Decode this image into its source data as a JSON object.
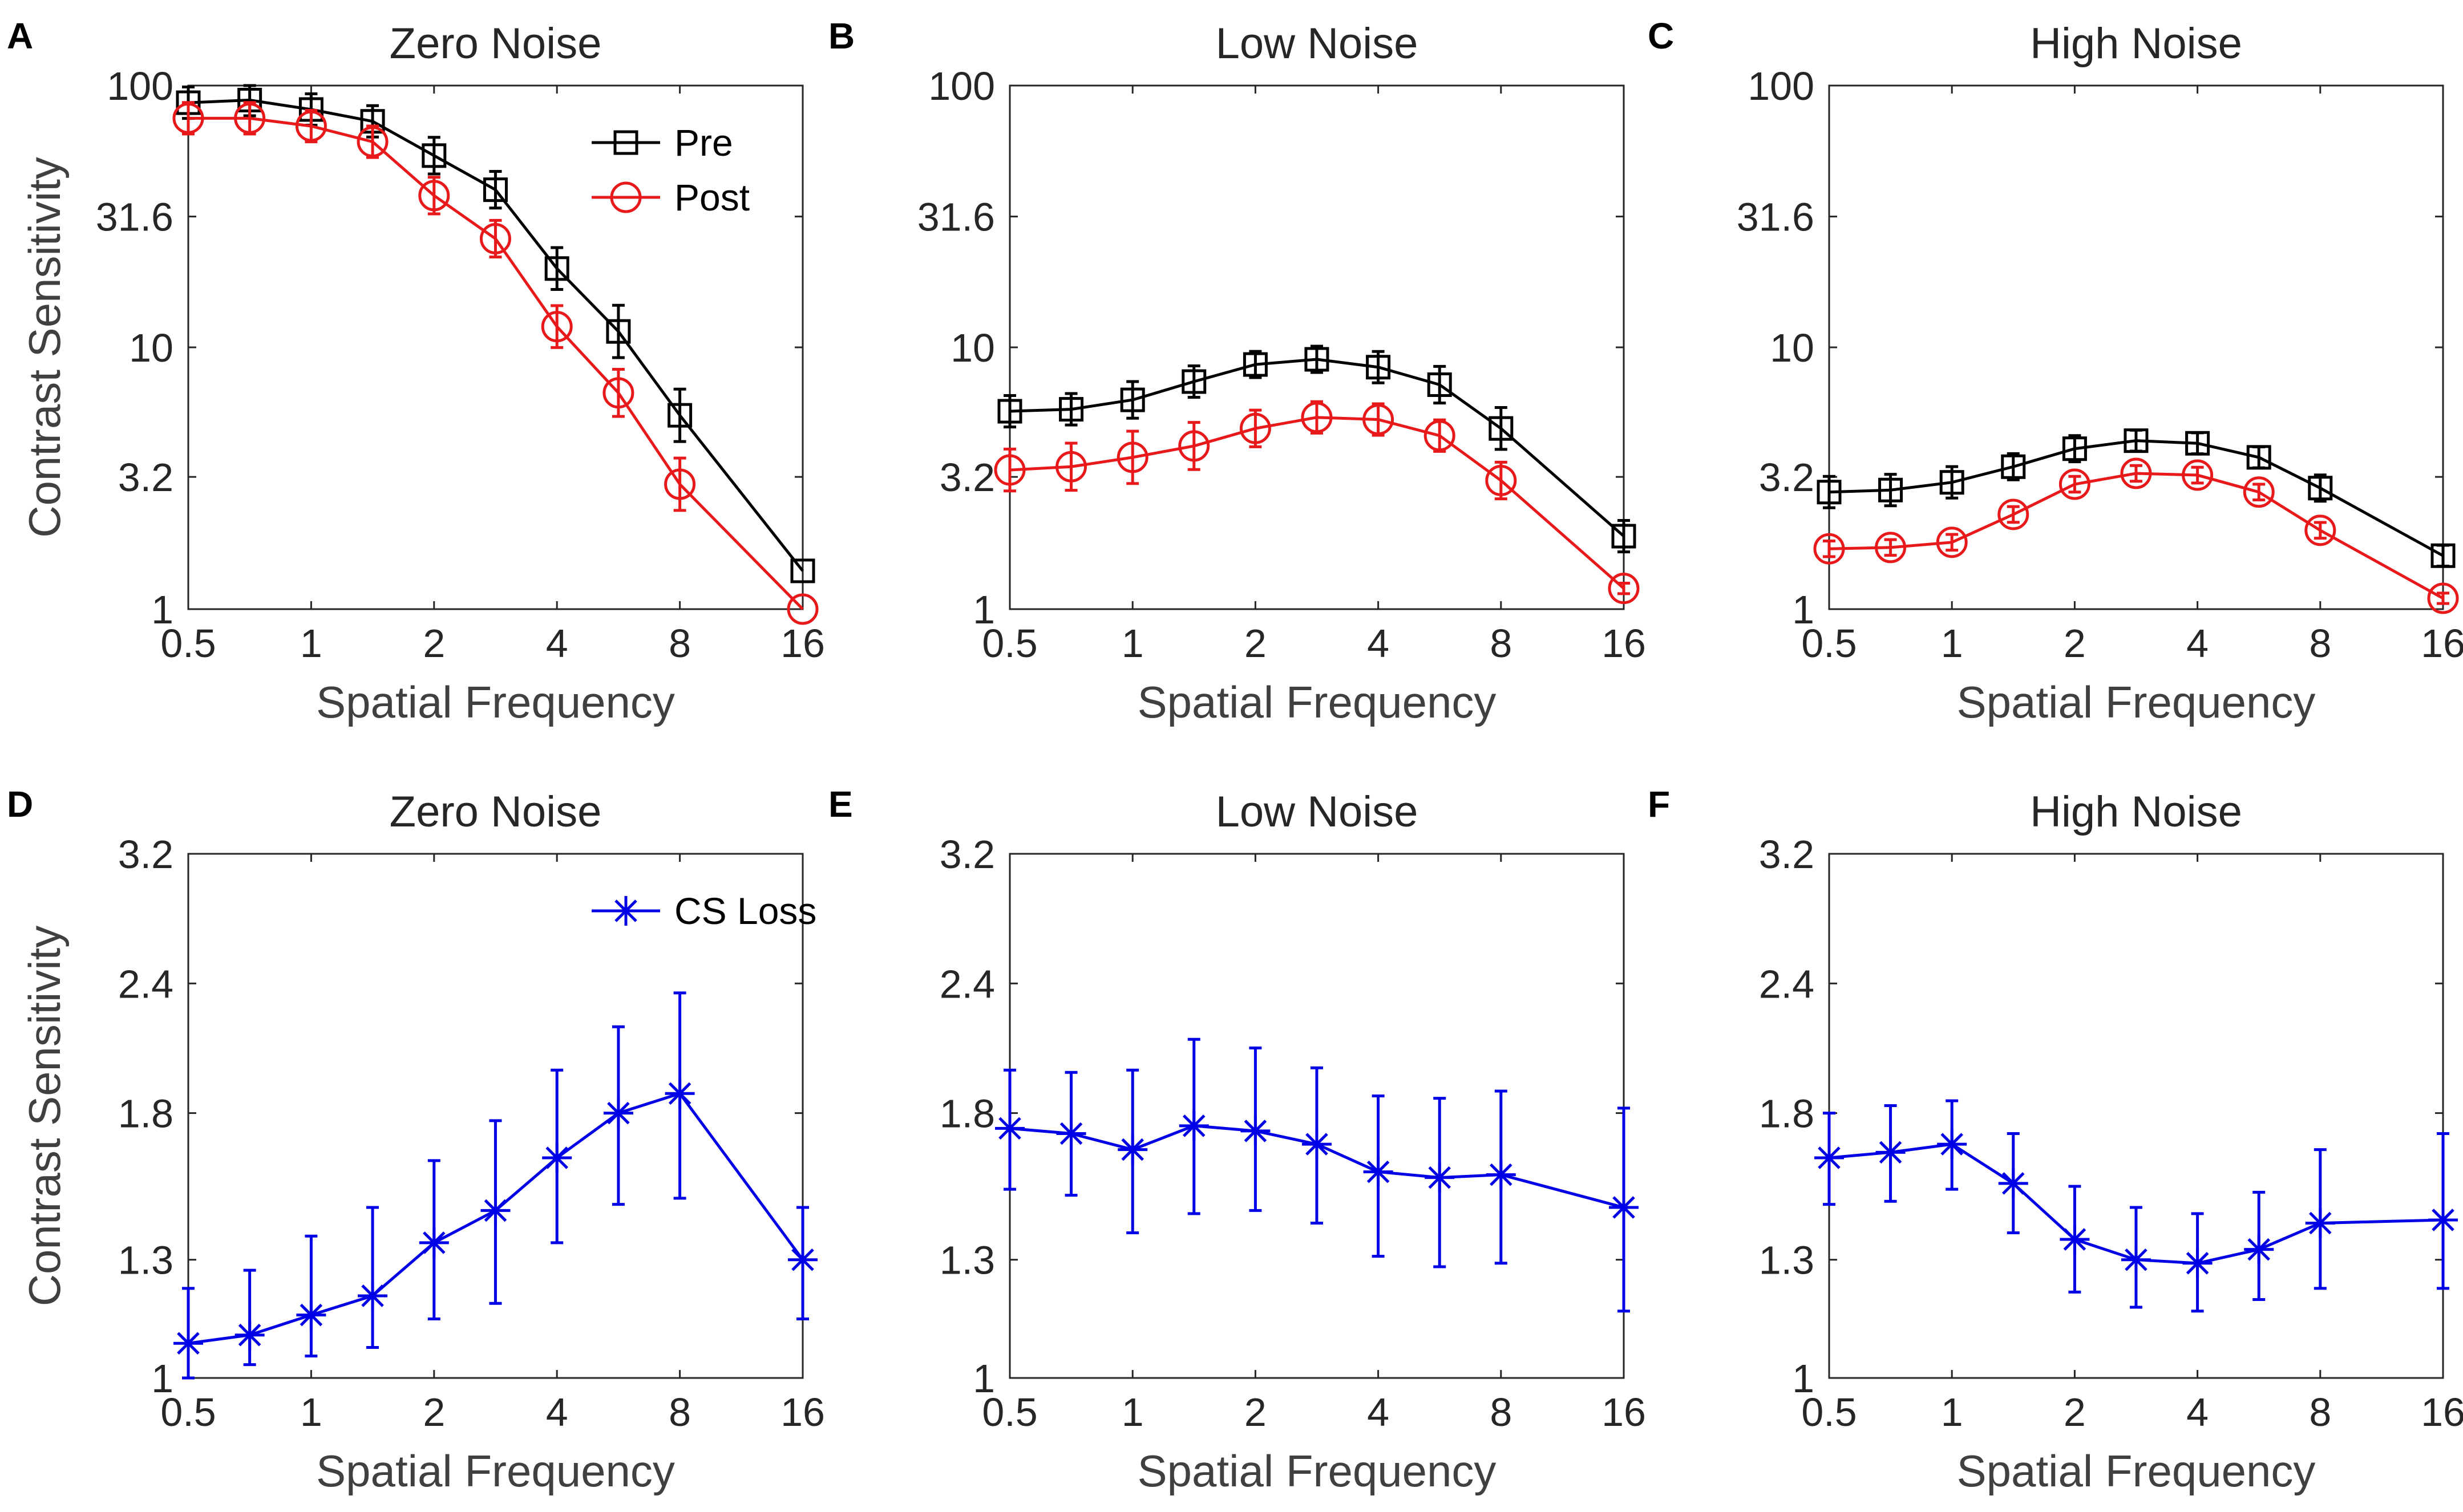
{
  "figure": {
    "row_ylabel": "Contrast Sensitivity",
    "xlabel": "Spatial Frequency"
  },
  "chart_data": [
    {
      "id": "A",
      "panel_letter": "A",
      "type": "line",
      "title": "Zero Noise",
      "xlabel": "Spatial Frequency",
      "ylabel": "Contrast Sensitivity",
      "xscale": "log",
      "yscale": "log",
      "xticks": [
        0.5,
        1,
        2,
        4,
        8,
        16
      ],
      "xtick_labels": [
        "0.5",
        "1",
        "2",
        "4",
        "8",
        "16"
      ],
      "yticks": [
        1,
        3.2,
        10,
        31.6,
        100
      ],
      "ytick_labels": [
        "1",
        "3.2",
        "10",
        "31.6",
        "100"
      ],
      "xlim": [
        0.5,
        16
      ],
      "ylim": [
        1,
        100
      ],
      "x": [
        0.5,
        0.707,
        1,
        1.414,
        2,
        2.828,
        4,
        5.657,
        8,
        16
      ],
      "legend": {
        "placement": "top-right"
      },
      "series": [
        {
          "name": "Pre",
          "color": "#000000",
          "marker": "square",
          "values": [
            86,
            88,
            81,
            73,
            54,
            40,
            20,
            11.5,
            5.5,
            1.4
          ],
          "err": [
            0.06,
            0.06,
            0.06,
            0.06,
            0.07,
            0.07,
            0.08,
            0.1,
            0.1,
            0
          ]
        },
        {
          "name": "Post",
          "color": "#e8191b",
          "marker": "circle",
          "values": [
            75,
            75,
            70,
            61,
            38,
            26,
            12,
            6.7,
            3,
            1
          ],
          "err": [
            0.06,
            0.06,
            0.06,
            0.06,
            0.07,
            0.07,
            0.08,
            0.09,
            0.1,
            0
          ]
        }
      ]
    },
    {
      "id": "B",
      "panel_letter": "B",
      "type": "line",
      "title": "Low Noise",
      "xlabel": "Spatial Frequency",
      "ylabel": "",
      "xscale": "log",
      "yscale": "log",
      "xticks": [
        0.5,
        1,
        2,
        4,
        8,
        16
      ],
      "xtick_labels": [
        "0.5",
        "1",
        "2",
        "4",
        "8",
        "16"
      ],
      "yticks": [
        1,
        3.2,
        10,
        31.6,
        100
      ],
      "ytick_labels": [
        "1",
        "3.2",
        "10",
        "31.6",
        "100"
      ],
      "xlim": [
        0.5,
        16
      ],
      "ylim": [
        1,
        100
      ],
      "x": [
        0.5,
        0.707,
        1,
        1.414,
        2,
        2.828,
        4,
        5.657,
        8,
        16
      ],
      "series": [
        {
          "name": "Pre",
          "color": "#000000",
          "marker": "square",
          "values": [
            5.7,
            5.8,
            6.3,
            7.4,
            8.6,
            9.0,
            8.4,
            7.2,
            4.9,
            1.9
          ],
          "err": [
            0.06,
            0.06,
            0.07,
            0.06,
            0.05,
            0.05,
            0.06,
            0.07,
            0.08,
            0.06
          ]
        },
        {
          "name": "Post",
          "color": "#e8191b",
          "marker": "circle",
          "values": [
            3.4,
            3.5,
            3.8,
            4.2,
            4.9,
            5.4,
            5.3,
            4.6,
            3.1,
            1.2
          ],
          "err": [
            0.08,
            0.09,
            0.1,
            0.09,
            0.07,
            0.06,
            0.06,
            0.06,
            0.07,
            0.02
          ]
        }
      ]
    },
    {
      "id": "C",
      "panel_letter": "C",
      "type": "line",
      "title": "High Noise",
      "xlabel": "Spatial Frequency",
      "ylabel": "",
      "xscale": "log",
      "yscale": "log",
      "xticks": [
        0.5,
        1,
        2,
        4,
        8,
        16
      ],
      "xtick_labels": [
        "0.5",
        "1",
        "2",
        "4",
        "8",
        "16"
      ],
      "yticks": [
        1,
        3.2,
        10,
        31.6,
        100
      ],
      "ytick_labels": [
        "1",
        "3.2",
        "10",
        "31.6",
        "100"
      ],
      "xlim": [
        0.5,
        16
      ],
      "ylim": [
        1,
        100
      ],
      "x": [
        0.5,
        0.707,
        1,
        1.414,
        2,
        2.828,
        4,
        5.657,
        8,
        16
      ],
      "series": [
        {
          "name": "Pre",
          "color": "#000000",
          "marker": "square",
          "values": [
            2.8,
            2.85,
            3.05,
            3.5,
            4.1,
            4.4,
            4.3,
            3.8,
            2.9,
            1.6
          ],
          "err": [
            0.06,
            0.06,
            0.06,
            0.05,
            0.05,
            0.04,
            0.04,
            0.04,
            0.05,
            0.04
          ]
        },
        {
          "name": "Post",
          "color": "#e8191b",
          "marker": "circle",
          "values": [
            1.7,
            1.72,
            1.8,
            2.3,
            3.0,
            3.3,
            3.25,
            2.8,
            2.0,
            1.1
          ],
          "err": [
            0.03,
            0.03,
            0.03,
            0.03,
            0.03,
            0.03,
            0.03,
            0.03,
            0.03,
            0.02
          ]
        }
      ]
    },
    {
      "id": "D",
      "panel_letter": "D",
      "type": "line",
      "title": "Zero Noise",
      "xlabel": "Spatial Frequency",
      "ylabel": "Contrast Sensitivity",
      "xscale": "log",
      "yscale": "log",
      "xticks": [
        0.5,
        1,
        2,
        4,
        8,
        16
      ],
      "xtick_labels": [
        "0.5",
        "1",
        "2",
        "4",
        "8",
        "16"
      ],
      "yticks": [
        1,
        1.3,
        1.8,
        2.4,
        3.2
      ],
      "ytick_labels": [
        "1",
        "1.3",
        "1.8",
        "2.4",
        "3.2"
      ],
      "xlim": [
        0.5,
        16
      ],
      "ylim": [
        1,
        3.2
      ],
      "x": [
        0.5,
        0.707,
        1,
        1.414,
        2,
        2.828,
        4,
        5.657,
        8,
        16
      ],
      "legend": {
        "placement": "top-right"
      },
      "series": [
        {
          "name": "CS Loss",
          "color": "#0000e6",
          "marker": "asterisk",
          "values": [
            1.08,
            1.1,
            1.15,
            1.2,
            1.35,
            1.45,
            1.63,
            1.8,
            1.88,
            1.3
          ],
          "lower": [
            1.0,
            1.03,
            1.05,
            1.07,
            1.14,
            1.18,
            1.35,
            1.47,
            1.49,
            1.14
          ],
          "upper": [
            1.22,
            1.27,
            1.37,
            1.46,
            1.62,
            1.77,
            1.98,
            2.18,
            2.35,
            1.46
          ]
        }
      ]
    },
    {
      "id": "E",
      "panel_letter": "E",
      "type": "line",
      "title": "Low Noise",
      "xlabel": "Spatial Frequency",
      "ylabel": "",
      "xscale": "log",
      "yscale": "log",
      "xticks": [
        0.5,
        1,
        2,
        4,
        8,
        16
      ],
      "xtick_labels": [
        "0.5",
        "1",
        "2",
        "4",
        "8",
        "16"
      ],
      "yticks": [
        1,
        1.3,
        1.8,
        2.4,
        3.2
      ],
      "ytick_labels": [
        "1",
        "1.3",
        "1.8",
        "2.4",
        "3.2"
      ],
      "xlim": [
        0.5,
        16
      ],
      "ylim": [
        1,
        3.2
      ],
      "x": [
        0.5,
        0.707,
        1,
        1.414,
        2,
        2.828,
        4,
        5.657,
        8,
        16
      ],
      "series": [
        {
          "name": "CS Loss",
          "color": "#0000e6",
          "marker": "asterisk",
          "values": [
            1.74,
            1.72,
            1.66,
            1.75,
            1.73,
            1.68,
            1.58,
            1.56,
            1.57,
            1.46
          ],
          "lower": [
            1.52,
            1.5,
            1.38,
            1.44,
            1.45,
            1.41,
            1.31,
            1.28,
            1.29,
            1.16
          ],
          "upper": [
            1.98,
            1.97,
            1.98,
            2.12,
            2.08,
            1.99,
            1.87,
            1.86,
            1.89,
            1.82
          ]
        }
      ]
    },
    {
      "id": "F",
      "panel_letter": "F",
      "type": "line",
      "title": "High Noise",
      "xlabel": "Spatial Frequency",
      "ylabel": "",
      "xscale": "log",
      "yscale": "log",
      "xticks": [
        0.5,
        1,
        2,
        4,
        8,
        16
      ],
      "xtick_labels": [
        "0.5",
        "1",
        "2",
        "4",
        "8",
        "16"
      ],
      "yticks": [
        1,
        1.3,
        1.8,
        2.4,
        3.2
      ],
      "ytick_labels": [
        "1",
        "1.3",
        "1.8",
        "2.4",
        "3.2"
      ],
      "xlim": [
        0.5,
        16
      ],
      "ylim": [
        1,
        3.2
      ],
      "x": [
        0.5,
        0.707,
        1,
        1.414,
        2,
        2.828,
        4,
        5.657,
        8,
        16
      ],
      "series": [
        {
          "name": "CS Loss",
          "color": "#0000e6",
          "marker": "asterisk",
          "values": [
            1.63,
            1.65,
            1.68,
            1.54,
            1.36,
            1.3,
            1.29,
            1.33,
            1.41,
            1.42
          ],
          "lower": [
            1.47,
            1.48,
            1.52,
            1.38,
            1.21,
            1.17,
            1.16,
            1.19,
            1.22,
            1.22
          ],
          "upper": [
            1.8,
            1.83,
            1.85,
            1.72,
            1.53,
            1.46,
            1.44,
            1.51,
            1.66,
            1.72
          ]
        }
      ]
    }
  ]
}
